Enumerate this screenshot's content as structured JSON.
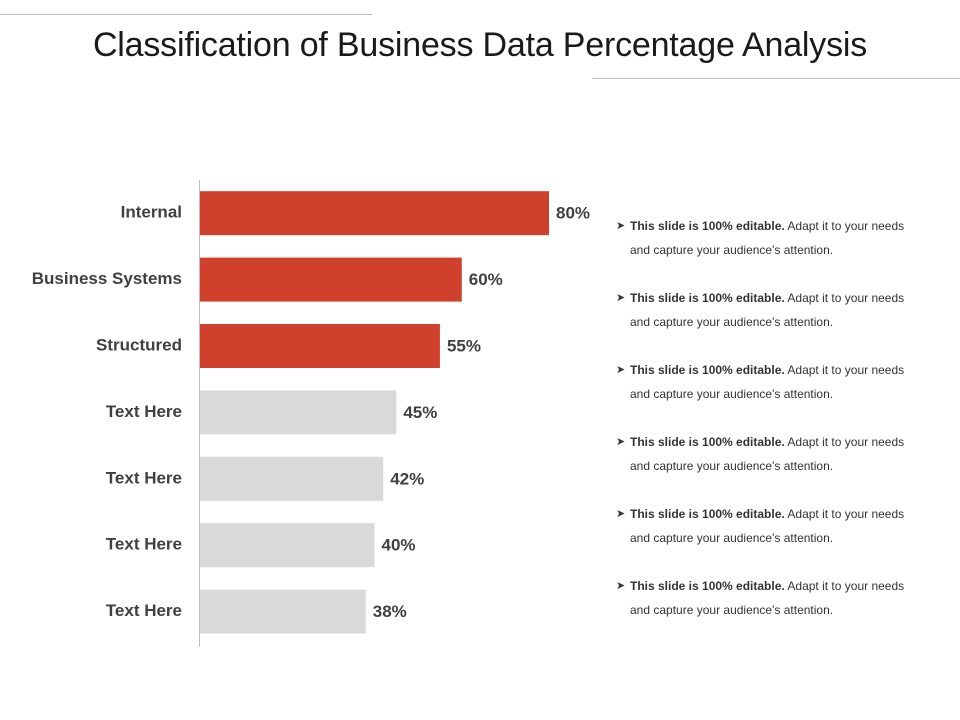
{
  "title": "Classification of Business Data Percentage Analysis",
  "colors": {
    "highlight_bar": "#cf412c",
    "muted_bar": "#d9d9d9",
    "axis_line": "#bfbfbf",
    "text": "#333333"
  },
  "chart_data": {
    "type": "bar",
    "orientation": "horizontal",
    "categories": [
      "Internal",
      "Business Systems",
      "Structured",
      "Text Here",
      "Text Here",
      "Text Here",
      "Text Here"
    ],
    "values": [
      80,
      60,
      55,
      45,
      42,
      40,
      38
    ],
    "value_labels": [
      "80%",
      "60%",
      "55%",
      "45%",
      "42%",
      "40%",
      "38%"
    ],
    "highlighted": [
      true,
      true,
      true,
      false,
      false,
      false,
      false
    ],
    "xlim": [
      0,
      100
    ],
    "grid": false,
    "legend": "none"
  },
  "notes": [
    {
      "bold": "This slide is 100%  editable.",
      "rest": " Adapt it to your needs",
      "line2": "and capture your audience's attention."
    },
    {
      "bold": "This slide is 100%  editable.",
      "rest": " Adapt it to your needs",
      "line2": "and capture your audience's attention."
    },
    {
      "bold": "This slide is 100%  editable.",
      "rest": " Adapt it to your needs",
      "line2": "and capture your audience's attention."
    },
    {
      "bold": "This slide is 100%  editable.",
      "rest": " Adapt it to your needs",
      "line2": "and capture your audience's attention."
    },
    {
      "bold": "This slide is 100%  editable.",
      "rest": " Adapt it to your needs",
      "line2": "and capture your audience's attention."
    },
    {
      "bold": "This slide is 100%  editable.",
      "rest": " Adapt it to your needs",
      "line2": "and capture your audience's attention."
    }
  ]
}
